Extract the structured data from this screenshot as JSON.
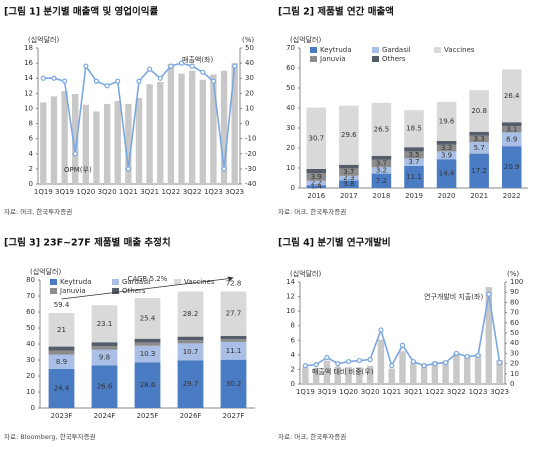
{
  "chart_data": [
    {
      "type": "bar_line",
      "title": "[그림 1] 분기별 매출액 및 영업이익률",
      "source": "자료: 머크, 한국투자증권",
      "y_unit": "(십억달러)",
      "y2_unit": "(%)",
      "categories": [
        "1Q19",
        null,
        "3Q19",
        null,
        "1Q20",
        null,
        "3Q20",
        null,
        "1Q21",
        null,
        "3Q21",
        null,
        "1Q22",
        null,
        "3Q22",
        null,
        "1Q23",
        null,
        "3Q23"
      ],
      "series": [
        {
          "name": "매출액(좌)",
          "color": "#c8c8c8",
          "values": [
            10.8,
            11.6,
            12.3,
            11.9,
            10.5,
            9.6,
            10.6,
            11.0,
            10.6,
            11.4,
            13.2,
            13.5,
            15.9,
            14.6,
            15.0,
            13.8,
            14.5,
            15.0,
            16.0
          ]
        },
        {
          "name": "OPM(우)",
          "color": "#7aa7e0",
          "axis": "y2",
          "values": [
            30,
            30,
            28,
            -20,
            38,
            28,
            25,
            28,
            -30,
            28,
            36,
            30,
            38,
            40,
            38,
            34,
            28,
            -30,
            38
          ]
        }
      ],
      "ylim": [
        0,
        18
      ],
      "yticks": [
        0,
        2,
        4,
        6,
        8,
        10,
        12,
        14,
        16,
        18
      ],
      "y2lim": [
        -40,
        50
      ],
      "y2ticks": [
        -40,
        -30,
        -20,
        -10,
        0,
        10,
        20,
        30,
        40,
        50
      ]
    },
    {
      "type": "stacked_bar",
      "title": "[그림 2] 제품별 연간 매출액",
      "source": "자료: 머크, 한국투자증권",
      "y_unit": "(십억달러)",
      "categories": [
        "2016",
        "2017",
        "2018",
        "2019",
        "2020",
        "2021",
        "2022"
      ],
      "series": [
        {
          "name": "Keytruda",
          "color": "#4a7cc4",
          "show_labels": true,
          "values": [
            1.4,
            3.8,
            7.2,
            11.1,
            14.4,
            17.2,
            20.9
          ]
        },
        {
          "name": "Gardasil",
          "color": "#a9bfe6",
          "show_labels": true,
          "values": [
            2.2,
            2.3,
            3.2,
            3.7,
            3.9,
            5.7,
            6.9
          ]
        },
        {
          "name": "Januvia",
          "color": "#8c8c8c",
          "show_labels": true,
          "values": [
            3.9,
            3.7,
            3.7,
            3.5,
            3.3,
            3.3,
            3.1
          ]
        },
        {
          "name": "Others",
          "color": "#555d6a",
          "show_labels": false,
          "values": [
            2.0,
            1.8,
            2.0,
            2.1,
            1.9,
            1.9,
            2.0
          ]
        },
        {
          "name": "Vaccines",
          "color": "#d9d9d9",
          "show_labels": true,
          "values": [
            30.7,
            29.6,
            26.5,
            18.5,
            19.6,
            20.8,
            26.4
          ]
        }
      ],
      "ylim": [
        0,
        70
      ],
      "yticks": [
        0,
        10,
        20,
        30,
        40,
        50,
        60,
        70
      ]
    },
    {
      "type": "stacked_bar",
      "title": "[그림 3] 23F~27F 제품별 매출 추정치",
      "source": "자료: Bloomberg, 한국투자증권",
      "y_unit": "(십억달러)",
      "categories": [
        "2023F",
        "2024F",
        "2025F",
        "2026F",
        "2027F"
      ],
      "series": [
        {
          "name": "Keytruda",
          "color": "#4a7cc4",
          "show_labels": true,
          "values": [
            24.4,
            26.6,
            28.6,
            29.7,
            30.2
          ]
        },
        {
          "name": "Gardasil",
          "color": "#a9bfe6",
          "show_labels": true,
          "values": [
            8.9,
            9.8,
            10.3,
            10.7,
            11.1
          ]
        },
        {
          "name": "Januvia",
          "color": "#8c8c8c",
          "show_labels": false,
          "values": [
            2.6,
            2.3,
            2.1,
            2.0,
            1.8
          ]
        },
        {
          "name": "Others",
          "color": "#555d6a",
          "show_labels": false,
          "values": [
            2.5,
            2.4,
            2.3,
            2.2,
            2.0
          ]
        },
        {
          "name": "Vaccines",
          "color": "#d9d9d9",
          "show_labels": true,
          "values": [
            21.0,
            23.1,
            25.4,
            28.2,
            27.7
          ]
        }
      ],
      "total_labels": [
        59.4,
        null,
        null,
        null,
        72.8
      ],
      "trend_label": "CAGR 5.2%",
      "ylim": [
        0,
        80
      ],
      "yticks": [
        0,
        10,
        20,
        30,
        40,
        50,
        60,
        70,
        80
      ]
    },
    {
      "type": "bar_line",
      "title": "[그림 4] 분기별 연구개발비",
      "source": "자료: 머크, 한국투자증권",
      "y_unit": "(십억달러)",
      "y2_unit": "(%)",
      "categories": [
        "1Q19",
        null,
        "3Q19",
        null,
        "1Q20",
        null,
        "3Q20",
        null,
        "1Q21",
        null,
        "3Q21",
        null,
        "1Q22",
        null,
        "3Q22",
        null,
        "1Q23",
        null,
        "3Q23"
      ],
      "series": [
        {
          "name": "연구개발비 지출(좌)",
          "color": "#c8c8c8",
          "values": [
            2.3,
            2.2,
            3.2,
            2.4,
            2.3,
            2.3,
            2.5,
            6.1,
            2.1,
            4.5,
            2.9,
            2.6,
            3.1,
            3.2,
            4.3,
            3.9,
            4.1,
            13.3,
            3.3
          ]
        },
        {
          "name": "매출액 대비 비중(우)",
          "color": "#7aa7e0",
          "axis": "y2",
          "values": [
            18,
            19,
            26,
            20,
            22,
            23,
            24,
            53,
            18,
            38,
            22,
            18,
            20,
            21,
            30,
            27,
            28,
            88,
            21
          ]
        }
      ],
      "ylim": [
        0,
        14
      ],
      "yticks": [
        0,
        2,
        4,
        6,
        8,
        10,
        12,
        14
      ],
      "y2lim": [
        0,
        100
      ],
      "y2ticks": [
        0,
        10,
        20,
        30,
        40,
        50,
        60,
        70,
        80,
        90,
        100
      ]
    }
  ]
}
